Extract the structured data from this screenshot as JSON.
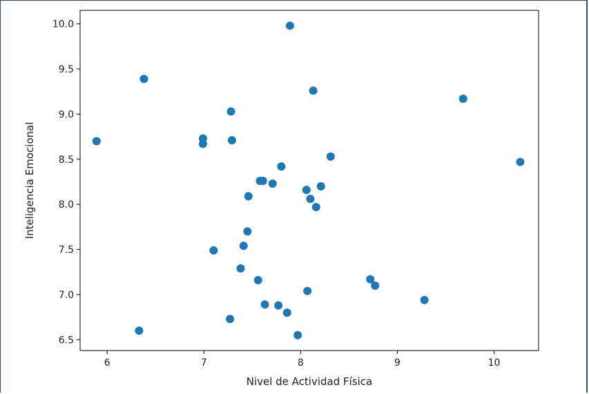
{
  "chart_data": {
    "type": "scatter",
    "xlabel": "Nivel de Actividad Física",
    "ylabel": "Inteligencia Emocional",
    "xlim": [
      5.72,
      10.46
    ],
    "ylim": [
      6.38,
      10.15
    ],
    "x_ticks": [
      "6",
      "7",
      "8",
      "9",
      "10"
    ],
    "y_ticks": [
      "6.5",
      "7.0",
      "7.5",
      "8.0",
      "8.5",
      "9.0",
      "9.5",
      "10.0"
    ],
    "grid": false,
    "marker_color": "#1f77b4",
    "points": [
      [
        5.89,
        8.7
      ],
      [
        6.38,
        9.39
      ],
      [
        6.33,
        6.6
      ],
      [
        6.99,
        8.73
      ],
      [
        6.99,
        8.67
      ],
      [
        7.1,
        7.49
      ],
      [
        7.28,
        9.03
      ],
      [
        7.29,
        8.71
      ],
      [
        7.27,
        6.73
      ],
      [
        7.38,
        7.29
      ],
      [
        7.41,
        7.54
      ],
      [
        7.45,
        7.7
      ],
      [
        7.46,
        8.09
      ],
      [
        7.56,
        7.16
      ],
      [
        7.58,
        8.26
      ],
      [
        7.61,
        8.26
      ],
      [
        7.63,
        6.89
      ],
      [
        7.71,
        8.23
      ],
      [
        7.77,
        6.88
      ],
      [
        7.8,
        8.42
      ],
      [
        7.86,
        6.8
      ],
      [
        7.89,
        9.98
      ],
      [
        7.97,
        6.55
      ],
      [
        8.06,
        8.16
      ],
      [
        8.07,
        7.04
      ],
      [
        8.1,
        8.06
      ],
      [
        8.13,
        9.26
      ],
      [
        8.16,
        7.97
      ],
      [
        8.21,
        8.2
      ],
      [
        8.31,
        8.53
      ],
      [
        8.72,
        7.17
      ],
      [
        8.77,
        7.1
      ],
      [
        9.28,
        6.94
      ],
      [
        9.68,
        9.17
      ],
      [
        10.27,
        8.47
      ]
    ]
  }
}
